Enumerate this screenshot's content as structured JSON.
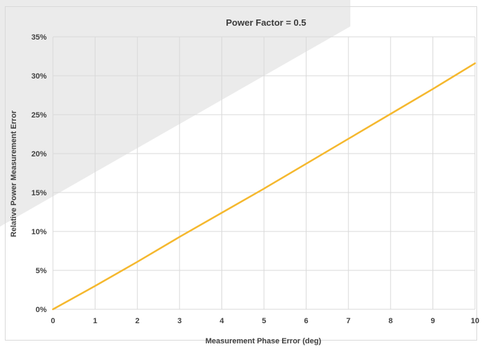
{
  "chart_data": {
    "type": "line",
    "title": "Power Factor = 0.5",
    "xlabel": "Measurement Phase Error (deg)",
    "ylabel": "Relative Power Measurement Error",
    "xlim": [
      0,
      10
    ],
    "ylim": [
      0,
      0.35
    ],
    "x_ticks": [
      0,
      1,
      2,
      3,
      4,
      5,
      6,
      7,
      8,
      9,
      10
    ],
    "x_tick_labels": [
      "0",
      "1",
      "2",
      "3",
      "4",
      "5",
      "6",
      "7",
      "8",
      "9",
      "10"
    ],
    "y_ticks": [
      0,
      0.05,
      0.1,
      0.15,
      0.2,
      0.25,
      0.3,
      0.35
    ],
    "y_tick_labels": [
      "0%",
      "5%",
      "10%",
      "15%",
      "20%",
      "25%",
      "30%",
      "35%"
    ],
    "grid": true,
    "legend": "none",
    "series": [
      {
        "color": "#f5b82e",
        "x": [
          0,
          1,
          2,
          3,
          4,
          5,
          6,
          7,
          8,
          9,
          10
        ],
        "y": [
          0,
          0.03,
          0.061,
          0.093,
          0.124,
          0.155,
          0.187,
          0.219,
          0.251,
          0.283,
          0.316
        ]
      }
    ],
    "colors": {
      "grid": "#d9d9d9",
      "background_wedge": "#ebebeb",
      "frame": "#d9d9d9"
    }
  }
}
